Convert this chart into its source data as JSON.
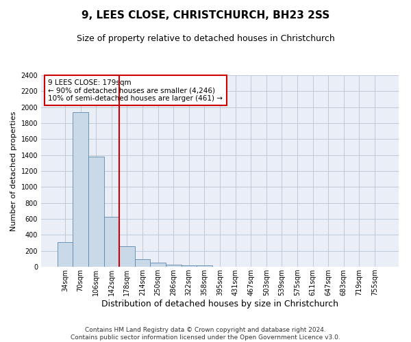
{
  "title": "9, LEES CLOSE, CHRISTCHURCH, BH23 2SS",
  "subtitle": "Size of property relative to detached houses in Christchurch",
  "xlabel": "Distribution of detached houses by size in Christchurch",
  "ylabel": "Number of detached properties",
  "footer_line1": "Contains HM Land Registry data © Crown copyright and database right 2024.",
  "footer_line2": "Contains public sector information licensed under the Open Government Licence v3.0.",
  "categories": [
    "34sqm",
    "70sqm",
    "106sqm",
    "142sqm",
    "178sqm",
    "214sqm",
    "250sqm",
    "286sqm",
    "322sqm",
    "358sqm",
    "395sqm",
    "431sqm",
    "467sqm",
    "503sqm",
    "539sqm",
    "575sqm",
    "611sqm",
    "647sqm",
    "683sqm",
    "719sqm",
    "755sqm"
  ],
  "values": [
    310,
    1940,
    1380,
    630,
    260,
    95,
    50,
    30,
    20,
    15,
    0,
    0,
    0,
    0,
    0,
    0,
    0,
    0,
    0,
    0,
    0
  ],
  "bar_color": "#c9d9e8",
  "bar_edge_color": "#5a86ad",
  "bar_edge_width": 0.6,
  "grid_color": "#b8c4d4",
  "annotation_line_index": 4,
  "annotation_line_color": "#cc0000",
  "annotation_box_text": "9 LEES CLOSE: 179sqm\n← 90% of detached houses are smaller (4,246)\n10% of semi-detached houses are larger (461) →",
  "annotation_box_color": "#cc0000",
  "ylim": [
    0,
    2400
  ],
  "yticks": [
    0,
    200,
    400,
    600,
    800,
    1000,
    1200,
    1400,
    1600,
    1800,
    2000,
    2200,
    2400
  ],
  "title_fontsize": 11,
  "subtitle_fontsize": 9,
  "xlabel_fontsize": 9,
  "ylabel_fontsize": 8,
  "tick_fontsize": 7,
  "annotation_fontsize": 7.5,
  "footer_fontsize": 6.5,
  "bg_color": "#ffffff",
  "plot_bg_color": "#eaeff7"
}
